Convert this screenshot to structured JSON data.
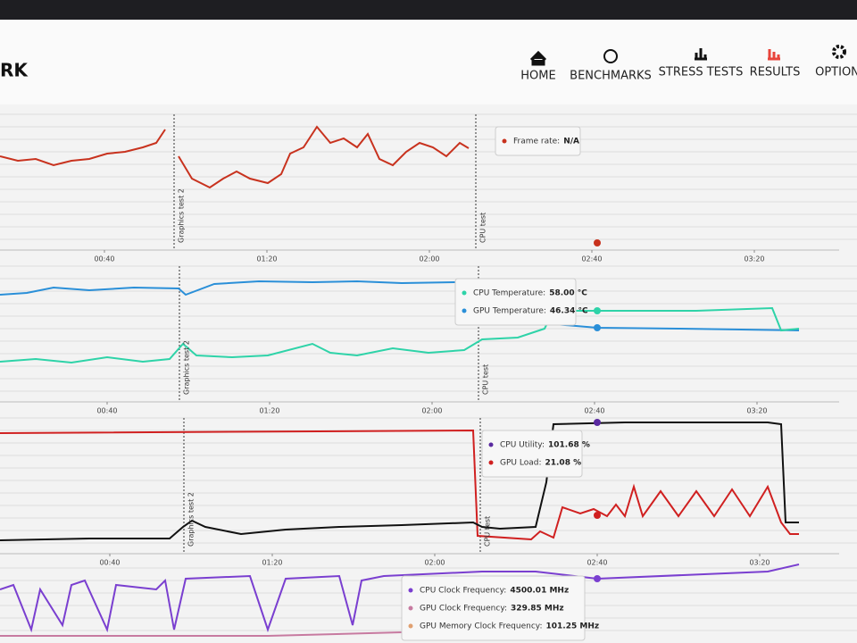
{
  "header": {
    "logo": "RK",
    "nav": [
      "HOME",
      "BENCHMARKS",
      "STRESS TESTS",
      "RESULTS",
      "OPTION"
    ]
  },
  "time_ticks": [
    "00:40",
    "01:20",
    "02:00",
    "02:40",
    "03:20"
  ],
  "panels": [
    {
      "markers": [
        "Graphics test 2",
        "CPU test"
      ],
      "tooltip": [
        {
          "label": "Frame rate:",
          "value": "N/A",
          "color": "#c8321e"
        }
      ]
    },
    {
      "markers": [
        "Graphics test 2",
        "CPU test"
      ],
      "tooltip": [
        {
          "label": "CPU Temperature:",
          "value": "58.00 °C",
          "color": "#2ed3a8"
        },
        {
          "label": "GPU Temperature:",
          "value": "46.34 °C",
          "color": "#2a8fd8"
        }
      ]
    },
    {
      "markers": [
        "Graphics test 2",
        "CPU test"
      ],
      "tooltip": [
        {
          "label": "CPU Utility:",
          "value": "101.68 %",
          "color": "#5a2aa0"
        },
        {
          "label": "GPU Load:",
          "value": "21.08 %",
          "color": "#d02020"
        }
      ]
    },
    {
      "tooltip": [
        {
          "label": "CPU Clock Frequency:",
          "value": "4500.01 MHz",
          "color": "#7a3fd0"
        },
        {
          "label": "GPU Clock Frequency:",
          "value": "329.85 MHz",
          "color": "#c77aa0"
        },
        {
          "label": "GPU Memory Clock Frequency:",
          "value": "101.25 MHz",
          "color": "#e0a070"
        }
      ]
    }
  ]
}
